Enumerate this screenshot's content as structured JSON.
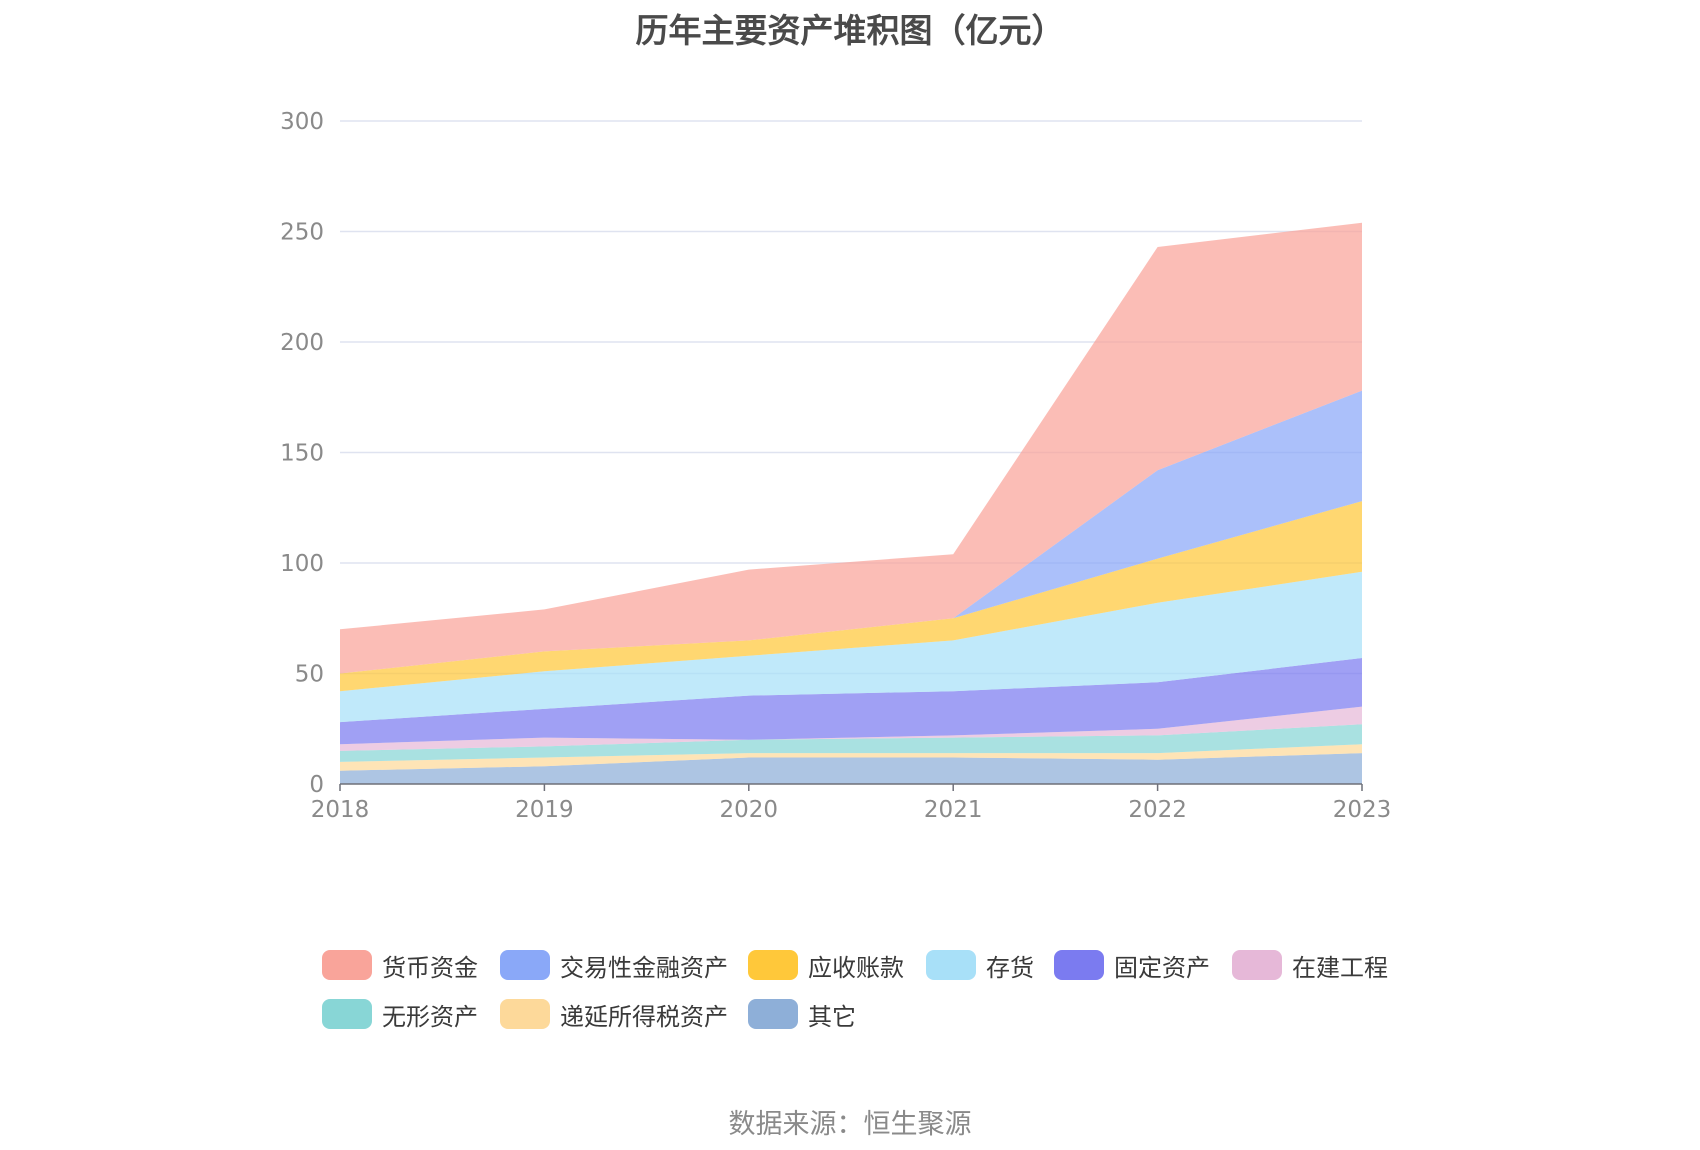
{
  "title": "历年主要资产堆积图（亿元）",
  "source": "数据来源：恒生聚源",
  "chart_data": {
    "type": "area",
    "stacked": true,
    "title": "历年主要资产堆积图（亿元）",
    "xlabel": "",
    "ylabel": "",
    "x": [
      "2018",
      "2019",
      "2020",
      "2021",
      "2022",
      "2023"
    ],
    "ylim": [
      0,
      300
    ],
    "yticks": [
      0,
      50,
      100,
      150,
      200,
      250,
      300
    ],
    "grid": true,
    "legend_position": "bottom",
    "series": [
      {
        "name": "其它",
        "color": "#8eafd8",
        "values": [
          6,
          8,
          12,
          12,
          11,
          14
        ]
      },
      {
        "name": "递延所得税资产",
        "color": "#fdd99a",
        "values": [
          4,
          4,
          2,
          2,
          3,
          4
        ]
      },
      {
        "name": "无形资产",
        "color": "#88d6d6",
        "values": [
          5,
          5,
          6,
          7,
          8,
          9
        ]
      },
      {
        "name": "在建工程",
        "color": "#e6b8d8",
        "values": [
          3,
          4,
          0,
          1,
          3,
          8
        ]
      },
      {
        "name": "固定资产",
        "color": "#7b7bf0",
        "values": [
          10,
          13,
          20,
          20,
          21,
          22
        ]
      },
      {
        "name": "存货",
        "color": "#a8e0f8",
        "values": [
          14,
          17,
          18,
          23,
          36,
          39
        ]
      },
      {
        "name": "应收账款",
        "color": "#ffc83a",
        "values": [
          8,
          9,
          7,
          10,
          20,
          32
        ]
      },
      {
        "name": "交易性金融资产",
        "color": "#8aa8f8",
        "values": [
          0,
          0,
          0,
          0,
          40,
          50
        ]
      },
      {
        "name": "货币资金",
        "color": "#f9a49a",
        "values": [
          20,
          19,
          32,
          29,
          101,
          76
        ]
      }
    ],
    "legend_order": [
      "货币资金",
      "交易性金融资产",
      "应收账款",
      "存货",
      "固定资产",
      "在建工程",
      "无形资产",
      "递延所得税资产",
      "其它"
    ]
  }
}
